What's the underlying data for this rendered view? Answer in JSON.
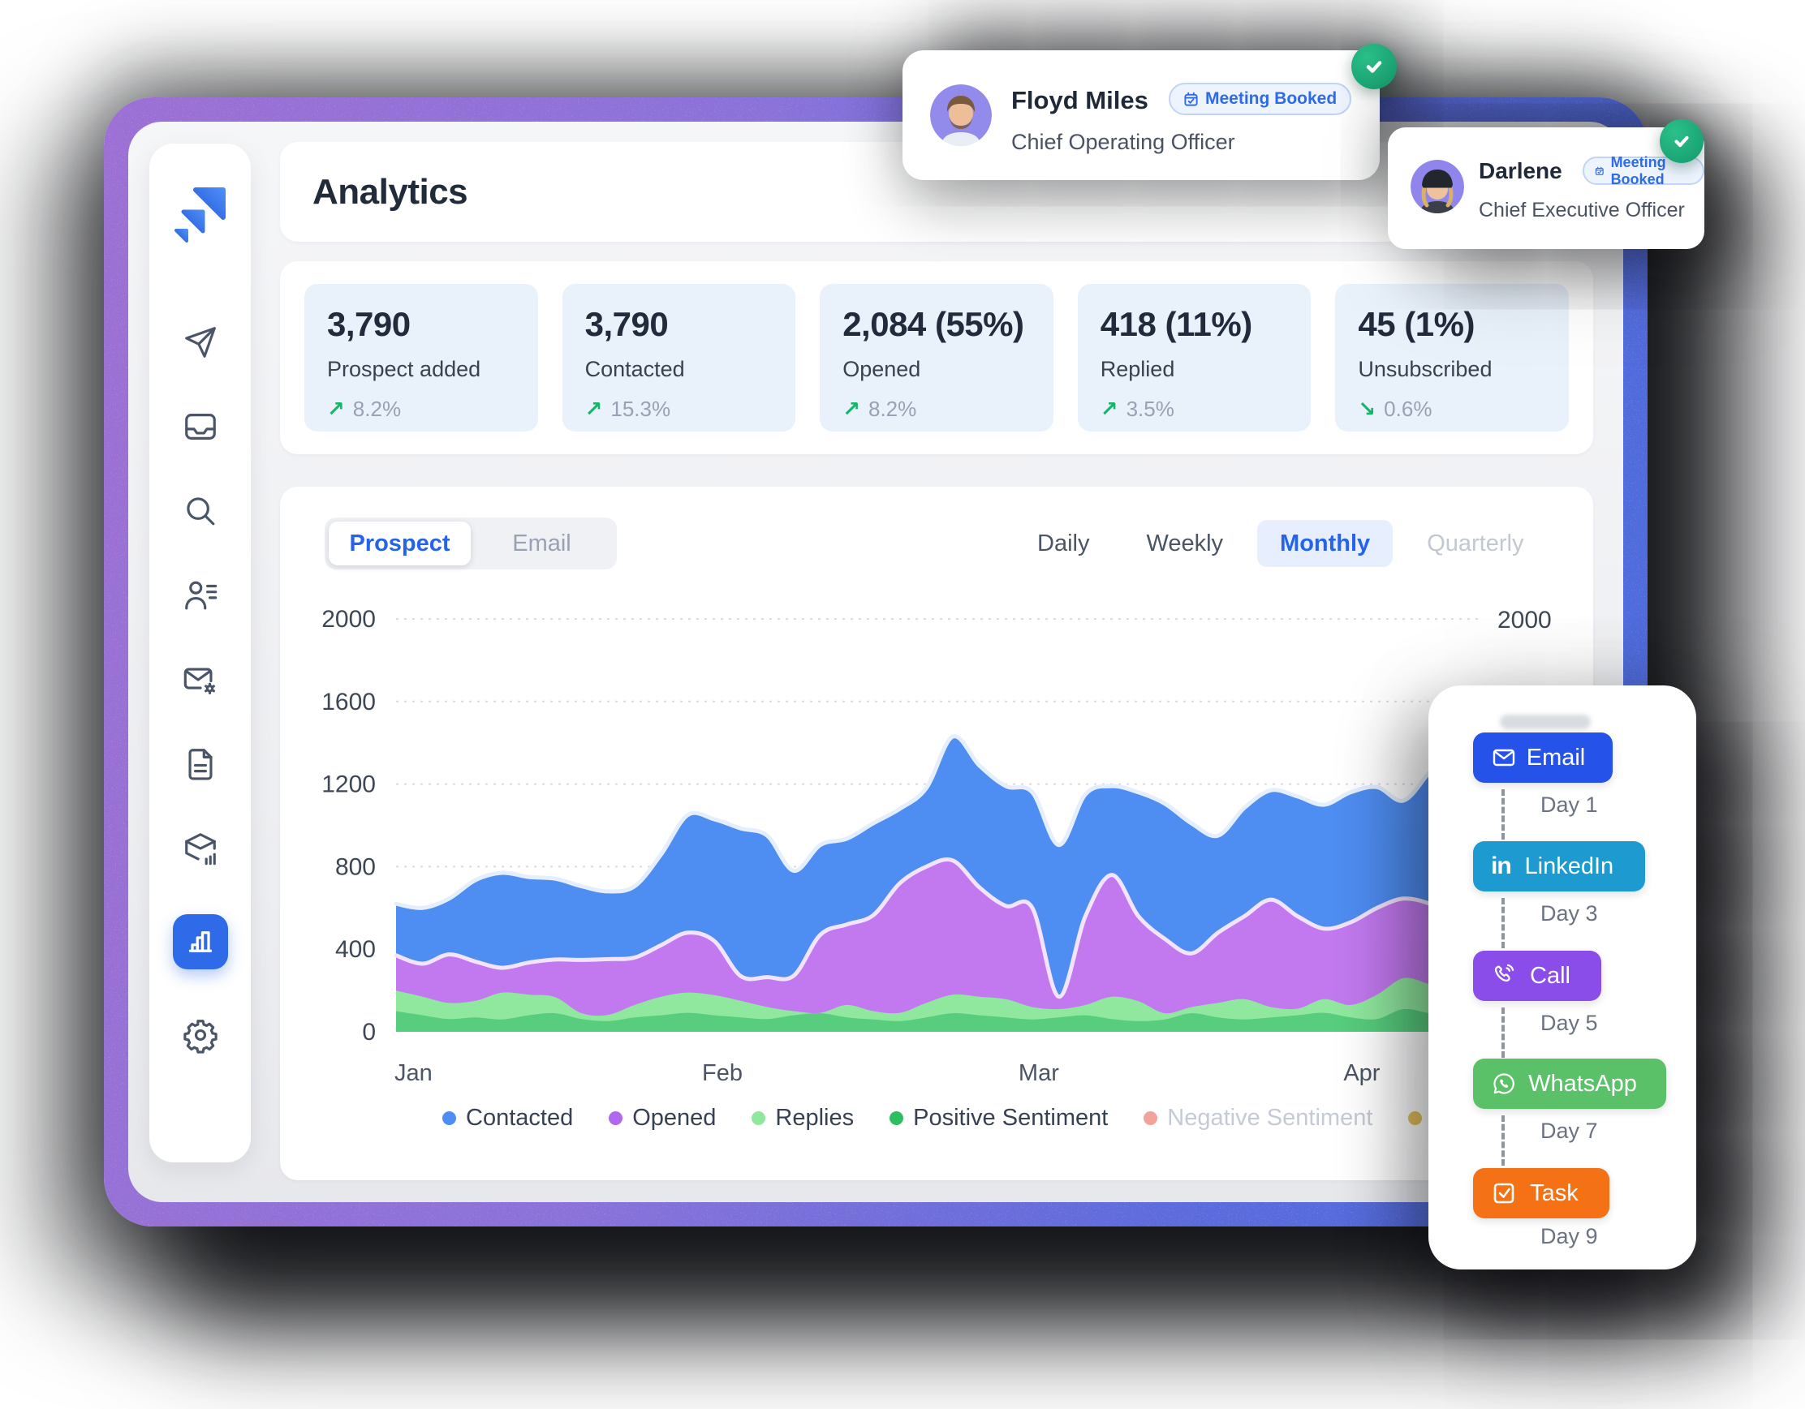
{
  "header": {
    "title": "Analytics"
  },
  "sidebar": {
    "items": [
      {
        "icon": "logo",
        "active": false
      },
      {
        "icon": "send-icon",
        "active": false
      },
      {
        "icon": "inbox-icon",
        "active": false
      },
      {
        "icon": "search-icon",
        "active": false
      },
      {
        "icon": "contacts-icon",
        "active": false
      },
      {
        "icon": "mail-settings-icon",
        "active": false
      },
      {
        "icon": "document-icon",
        "active": false
      },
      {
        "icon": "deliverability-icon",
        "active": false
      },
      {
        "icon": "analytics-icon",
        "active": true
      },
      {
        "icon": "settings-icon",
        "active": false
      }
    ]
  },
  "stats": {
    "cards": [
      {
        "value": "3,790",
        "label": "Prospect added",
        "delta": "8.2%",
        "direction": "up"
      },
      {
        "value": "3,790",
        "label": "Contacted",
        "delta": "15.3%",
        "direction": "up"
      },
      {
        "value": "2,084 (55%)",
        "label": "Opened",
        "delta": "8.2%",
        "direction": "up"
      },
      {
        "value": "418 (11%)",
        "label": "Replied",
        "delta": "3.5%",
        "direction": "up"
      },
      {
        "value": "45 (1%)",
        "label": "Unsubscribed",
        "delta": "0.6%",
        "direction": "down"
      }
    ]
  },
  "chart_card": {
    "dataset_tabs": [
      {
        "label": "Prospect",
        "active": true
      },
      {
        "label": "Email",
        "active": false
      }
    ],
    "period_tabs": [
      {
        "label": "Daily",
        "active": false
      },
      {
        "label": "Weekly",
        "active": false
      },
      {
        "label": "Monthly",
        "active": true
      },
      {
        "label": "Quarterly",
        "active": false
      }
    ],
    "right_axis_label": "2000"
  },
  "chart_data": {
    "type": "area",
    "title": "",
    "x_categories": [
      "Jan",
      "Feb",
      "Mar",
      "Apr"
    ],
    "x_positions": [
      0.016,
      0.3,
      0.591,
      0.888
    ],
    "ylim": [
      0,
      2000
    ],
    "yticks": [
      0,
      400,
      800,
      1200,
      1600,
      2000
    ],
    "grid": "dotted-horizontal",
    "legend_position": "bottom",
    "series": [
      {
        "name": "Contacted",
        "color": "#4E8DF1",
        "edge": "#E4EEFD",
        "values": [
          620,
          600,
          645,
          735,
          770,
          750,
          742,
          705,
          680,
          705,
          860,
          1050,
          1030,
          985,
          950,
          780,
          905,
          935,
          1010,
          1080,
          1180,
          1430,
          1290,
          1190,
          1160,
          905,
          1150,
          1190,
          1160,
          1105,
          1010,
          950,
          1085,
          1170,
          1140,
          1100,
          1160,
          1185,
          1120,
          1260,
          1400,
          1380,
          1355
        ]
      },
      {
        "name": "Opened",
        "color": "#C279EF",
        "edge": "#F4E3FC",
        "values": [
          370,
          330,
          375,
          340,
          310,
          335,
          350,
          348,
          352,
          360,
          420,
          480,
          440,
          270,
          265,
          272,
          470,
          520,
          565,
          720,
          800,
          830,
          700,
          610,
          600,
          170,
          560,
          760,
          560,
          450,
          380,
          480,
          560,
          640,
          560,
          500,
          530,
          600,
          645,
          620,
          560,
          545,
          520
        ]
      },
      {
        "name": "Replies",
        "color": "#90E89E",
        "edge": "",
        "values": [
          200,
          170,
          140,
          150,
          190,
          180,
          168,
          90,
          82,
          130,
          170,
          190,
          178,
          150,
          120,
          100,
          92,
          130,
          100,
          92,
          140,
          180,
          170,
          158,
          120,
          110,
          130,
          170,
          148,
          90,
          120,
          140,
          158,
          120,
          112,
          158,
          130,
          180,
          260,
          230,
          200,
          192,
          185
        ]
      },
      {
        "name": "Positive Sentiment",
        "color": "#57CD7D",
        "edge": "",
        "values": [
          100,
          80,
          62,
          70,
          60,
          80,
          90,
          62,
          52,
          70,
          80,
          92,
          80,
          70,
          62,
          80,
          90,
          70,
          60,
          52,
          70,
          90,
          80,
          70,
          60,
          70,
          80,
          62,
          52,
          60,
          90,
          70,
          60,
          70,
          80,
          92,
          70,
          62,
          110,
          90,
          80,
          72,
          68
        ]
      }
    ],
    "legend": [
      {
        "label": "Contacted",
        "color": "#4E8DF1",
        "muted": false
      },
      {
        "label": "Opened",
        "color": "#B168F0",
        "muted": false
      },
      {
        "label": "Replies",
        "color": "#90E89E",
        "muted": false
      },
      {
        "label": "Positive Sentiment",
        "color": "#2EBE62",
        "muted": false
      },
      {
        "label": "Negative Sentiment",
        "color": "#F2A39C",
        "muted": true
      },
      {
        "label": "",
        "color": "#E5C25C",
        "muted": true
      }
    ]
  },
  "notifications": [
    {
      "name": "Floyd Miles",
      "badge": "Meeting Booked",
      "role": "Chief Operating Officer"
    },
    {
      "name": "Darlene",
      "badge": "Meeting Booked",
      "role": "Chief Executive Officer"
    }
  ],
  "sequence": {
    "steps": [
      {
        "label": "Email",
        "day": "Day 1",
        "color": "#2553EA",
        "icon": "email-icon"
      },
      {
        "label": "LinkedIn",
        "day": "Day 3",
        "color": "#1D9BD1",
        "icon": "linkedin-icon"
      },
      {
        "label": "Call",
        "day": "Day 5",
        "color": "#8A4DEA",
        "icon": "call-icon"
      },
      {
        "label": "WhatsApp",
        "day": "Day 7",
        "color": "#5BC169",
        "icon": "whatsapp-icon"
      },
      {
        "label": "Task",
        "day": "Day 9",
        "color": "#F57115",
        "icon": "task-icon"
      }
    ]
  },
  "colors": {
    "frame_gradient_start": "#9C70D4",
    "frame_gradient_end": "#4A6BDC",
    "accent_blue": "#2563EB",
    "positive_green": "#12B76A",
    "stat_card_bg": "#E9F1FB"
  }
}
